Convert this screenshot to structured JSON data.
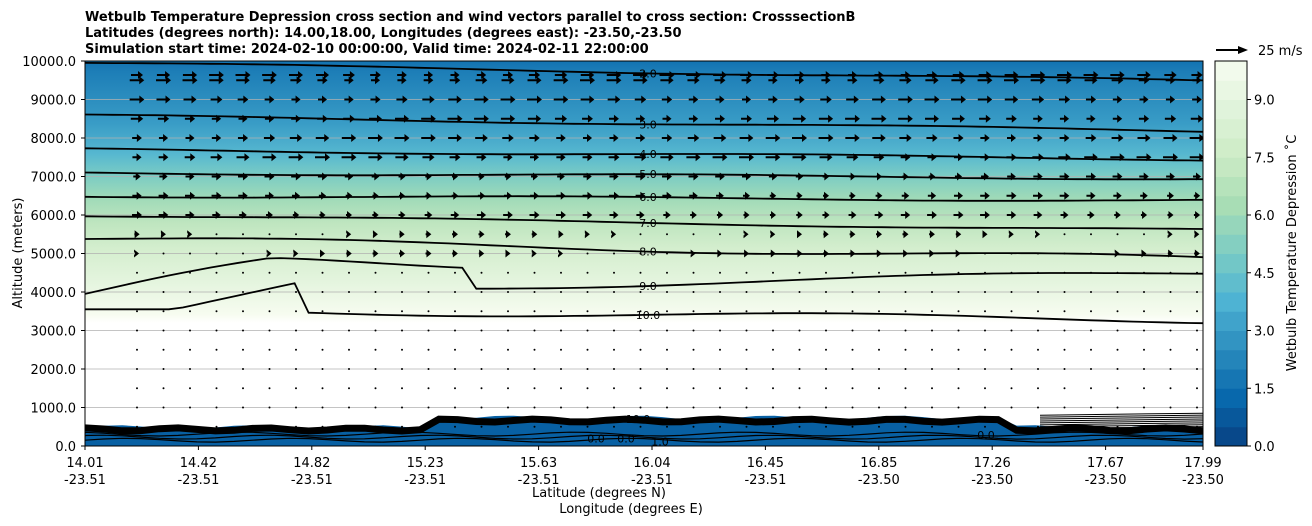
{
  "chart_data": {
    "type": "contour",
    "title_lines": [
      "Wetbulb Temperature Depression cross section and wind vectors parallel to cross section: CrosssectionB",
      "Latitudes (degrees north): 14.00,18.00, Longitudes (degrees east): -23.50,-23.50",
      "Simulation start time: 2024-02-10 00:00:00, Valid time: 2024-02-11 22:00:00"
    ],
    "ylabel": "Altitude (meters)",
    "xlabel_lat": "Latitude (degrees N)",
    "xlabel_lon": "Longitude (degrees E)",
    "ylim": [
      0,
      10000
    ],
    "yticks": [
      "0.0",
      "1000.0",
      "2000.0",
      "3000.0",
      "4000.0",
      "5000.0",
      "6000.0",
      "7000.0",
      "8000.0",
      "9000.0",
      "10000.0"
    ],
    "xticks": [
      {
        "lat": "14.01",
        "lon": "-23.51"
      },
      {
        "lat": "14.42",
        "lon": "-23.51"
      },
      {
        "lat": "14.82",
        "lon": "-23.51"
      },
      {
        "lat": "15.23",
        "lon": "-23.51"
      },
      {
        "lat": "15.63",
        "lon": "-23.51"
      },
      {
        "lat": "16.04",
        "lon": "-23.51"
      },
      {
        "lat": "16.45",
        "lon": "-23.51"
      },
      {
        "lat": "16.85",
        "lon": "-23.50"
      },
      {
        "lat": "17.26",
        "lon": "-23.50"
      },
      {
        "lat": "17.67",
        "lon": "-23.50"
      },
      {
        "lat": "17.99",
        "lon": "-23.50"
      }
    ],
    "colorbar": {
      "label": "Wetbulb Temperature Depression ˚C",
      "range": [
        0,
        10
      ],
      "ticks": [
        "0.0",
        "1.5",
        "3.0",
        "4.5",
        "6.0",
        "7.5",
        "9.0"
      ],
      "colormap": [
        "#084081",
        "#0868ac",
        "#2b8cbe",
        "#4eb3d3",
        "#7bccc4",
        "#a8ddb5",
        "#ccebc5",
        "#e0f3db",
        "#f7fcf0"
      ]
    },
    "wind_key_label": "25 m/s",
    "contour_levels": [
      {
        "value": 2.0,
        "label": "2.0",
        "alt_left": 9950,
        "alt_right": 9480
      },
      {
        "value": 3.0,
        "label": "3.0",
        "alt_left": 8580,
        "alt_right": 8180
      },
      {
        "value": 4.0,
        "label": "4.0",
        "alt_left": 7700,
        "alt_right": 7450
      },
      {
        "value": 5.0,
        "label": "5.0",
        "alt_left": 7100,
        "alt_right": 6950
      },
      {
        "value": 6.0,
        "label": "6.0",
        "alt_left": 6500,
        "alt_right": 6380
      },
      {
        "value": 7.0,
        "label": "7.0",
        "alt_left": 6000,
        "alt_right": 5600
      },
      {
        "value": 8.0,
        "label": "8.0",
        "alt_left": 5400,
        "alt_right": 4850
      },
      {
        "value": 9.0,
        "label": "9.0",
        "alt_left": 3950,
        "alt_right": 4500
      },
      {
        "value": 10.0,
        "label": "10.0",
        "alt_left": 3550,
        "alt_right": 3270
      }
    ],
    "surface_labels": [
      "0.0",
      "0.0",
      "1.0",
      "0.0",
      "10.0"
    ]
  }
}
